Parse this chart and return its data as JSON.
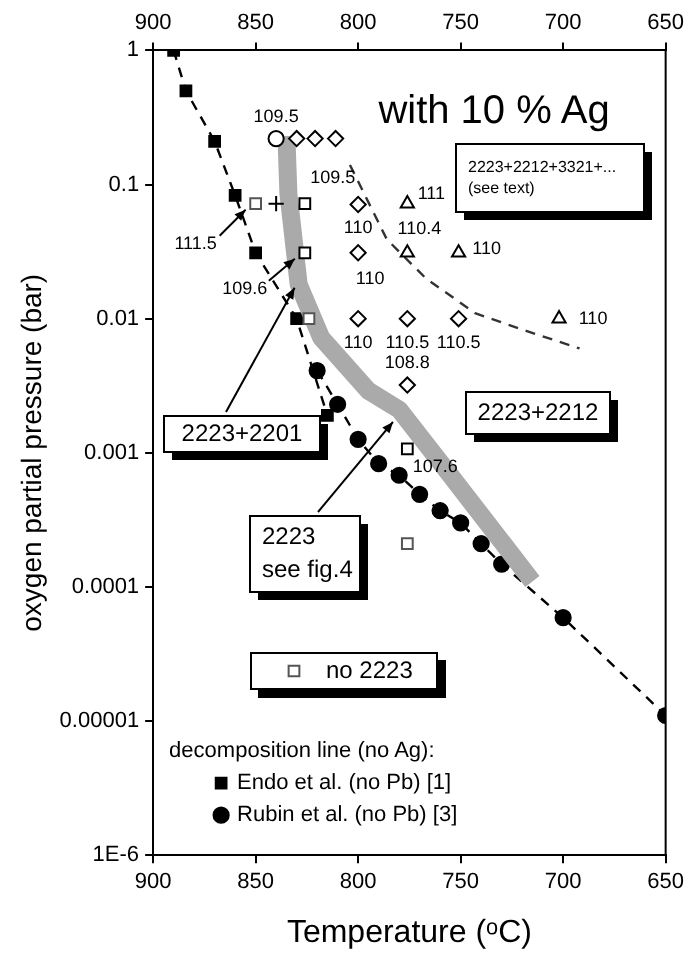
{
  "chart_data": {
    "type": "scatter",
    "xlabel": "Temperature (ᵒC)",
    "ylabel": "oxygen partial pressure (bar)",
    "legend_title": "decomposition line (no Ag):",
    "legend": "bottom left",
    "log": "y",
    "grid": false,
    "xlim": [
      900,
      650
    ],
    "xticks": [
      900,
      850,
      800,
      750,
      700,
      650
    ],
    "x2lim": [
      900,
      650
    ],
    "x2ticks": [
      900,
      850,
      800,
      750,
      700,
      650
    ],
    "ylim": [
      1e-06,
      1
    ],
    "yticks": [
      {
        "value": 1e-06,
        "label": "1E-6"
      },
      {
        "value": 1e-05,
        "label": "0.00001"
      },
      0.0001,
      0.001,
      0.01,
      0.1,
      1
    ],
    "series": [
      {
        "name": "Endo et al. (no Pb) [1]",
        "type": "line",
        "color": "#000000",
        "marker": "square",
        "line_style": "dashed",
        "x": [
          890,
          884,
          870,
          860,
          850,
          830,
          815
        ],
        "values": [
          1,
          0.5,
          0.21,
          0.083,
          0.031,
          0.01,
          0.0019
        ]
      },
      {
        "name": "Rubin et al. (no Pb) [3]",
        "type": "line",
        "color": "#000000",
        "marker": "circle",
        "line_style": "dashed",
        "x": [
          820,
          810,
          800,
          790,
          780,
          770,
          760,
          750,
          740,
          730,
          700,
          650
        ],
        "values": [
          0.0041,
          0.0023,
          0.00126,
          0.00083,
          0.00068,
          0.00049,
          0.00037,
          0.0003,
          0.00021,
          0.000148,
          5.9e-05,
          1.1e-05
        ]
      },
      {
        "type": "line",
        "color": "#aaaaaa",
        "marker": "none",
        "line_style": "solid",
        "x": [
          835,
          834,
          829,
          818,
          795,
          780,
          755,
          715
        ],
        "values": [
          0.23,
          0.085,
          0.018,
          0.0072,
          0.0029,
          0.0021,
          0.00068,
          0.00011
        ]
      },
      {
        "type": "line",
        "color": "#333333",
        "marker": "none",
        "line_style": "dashed",
        "x": [
          804,
          786,
          767,
          743,
          718,
          692
        ],
        "values": [
          0.14,
          0.039,
          0.02,
          0.011,
          0.0081,
          0.006
        ]
      },
      {
        "color": "#000000",
        "marker": "diamond",
        "x": [
          830,
          821,
          811,
          800,
          800,
          800,
          776,
          751,
          776
        ],
        "values": [
          0.22,
          0.22,
          0.22,
          0.071,
          0.031,
          0.01,
          0.01,
          0.01,
          0.0032
        ]
      },
      {
        "color": "#000000",
        "marker": "triangle",
        "x": [
          776,
          776,
          751,
          702
        ],
        "values": [
          0.072,
          0.031,
          0.031,
          0.01
        ]
      },
      {
        "color": "#000000",
        "marker": "square",
        "x": [
          826,
          826,
          776
        ],
        "values": [
          0.072,
          0.031,
          0.00107
        ]
      },
      {
        "name": "no 2223",
        "color": "#555555",
        "marker": "square",
        "x": [
          850,
          824,
          776
        ],
        "values": [
          0.072,
          0.01,
          0.00021
        ]
      },
      {
        "color": "#000000",
        "marker": "cross",
        "x": [
          840
        ],
        "values": [
          0.072
        ]
      },
      {
        "color": "#000000",
        "marker": "circle",
        "x": [
          840
        ],
        "values": [
          0.22
        ]
      }
    ],
    "annotations": [
      "with 10 % Ag",
      "2223+2212+3321+...\n(see text)",
      "2223+2212",
      {
        "text": "2223+2201",
        "x": 831,
        "y": 0.017
      },
      {
        "text": "2223\nsee fig.4",
        "x": 783,
        "y": 0.0017
      },
      {
        "text": "109.5",
        "x": 840,
        "y": 0.22
      },
      {
        "text": "109.5",
        "x": 826,
        "y": 0.072
      },
      {
        "text": "110",
        "x": 800,
        "y": 0.071
      },
      {
        "text": "111",
        "x": 776,
        "y": 0.072
      },
      {
        "text": "110.4",
        "x": 776,
        "y": 0.031
      },
      {
        "text": "110",
        "x": 751,
        "y": 0.031
      },
      {
        "text": "110",
        "x": 800,
        "y": 0.031
      },
      {
        "text": "111.5",
        "x": 850,
        "y": 0.072
      },
      {
        "text": "109.6",
        "x": 826,
        "y": 0.031
      },
      {
        "text": "110",
        "x": 800,
        "y": 0.01
      },
      {
        "text": "110.5",
        "x": 776,
        "y": 0.01
      },
      {
        "text": "110.5",
        "x": 751,
        "y": 0.01
      },
      {
        "text": "110",
        "x": 702,
        "y": 0.01
      },
      {
        "text": "108.8",
        "x": 776,
        "y": 0.0032
      },
      {
        "text": "107.6",
        "x": 776,
        "y": 0.00107
      }
    ]
  }
}
